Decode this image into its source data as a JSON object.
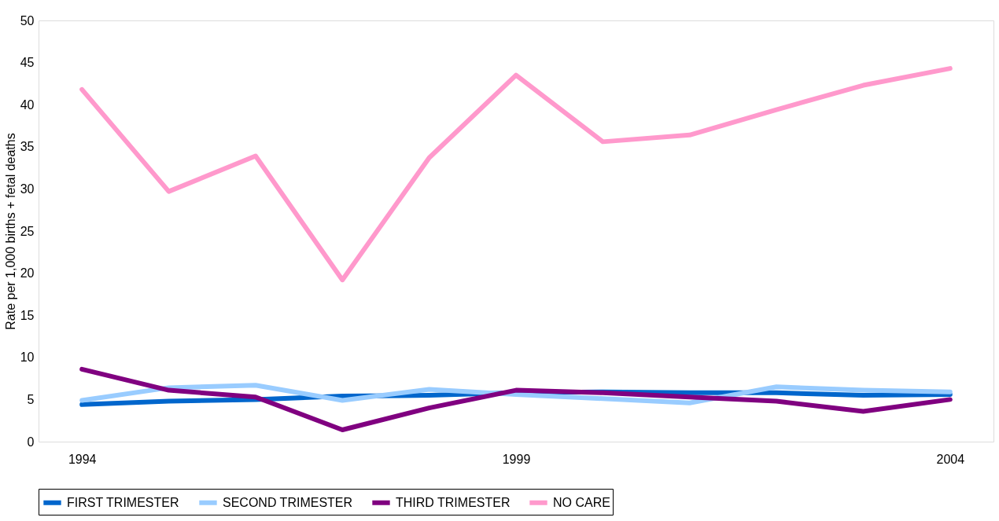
{
  "chart_data": {
    "type": "line",
    "ylabel": "Rate per 1,000 births + fetal deaths",
    "x": [
      1994,
      1995,
      1996,
      1997,
      1998,
      1999,
      2000,
      2001,
      2002,
      2003,
      2004
    ],
    "xlim": [
      1993.5,
      2004.5
    ],
    "xticks": [
      1994,
      1999,
      2004
    ],
    "ylim": [
      0,
      50
    ],
    "yticks": [
      0,
      5,
      10,
      15,
      20,
      25,
      30,
      35,
      40,
      45,
      50
    ],
    "grid": false,
    "legend": "bottom",
    "marker": "none",
    "line_style": "solid",
    "series": [
      {
        "name": "FIRST TRIMESTER",
        "color": "#0066cc",
        "values": [
          4.4,
          4.8,
          5.0,
          5.4,
          5.5,
          5.8,
          5.9,
          5.8,
          5.8,
          5.5,
          5.6
        ]
      },
      {
        "name": "SECOND TRIMESTER",
        "color": "#99ccff",
        "values": [
          4.9,
          6.4,
          6.7,
          4.9,
          6.2,
          5.6,
          5.1,
          4.6,
          6.5,
          6.1,
          5.9
        ]
      },
      {
        "name": "THIRD TRIMESTER",
        "color": "#800080",
        "values": [
          8.6,
          6.1,
          5.3,
          1.4,
          4.0,
          6.1,
          5.8,
          5.3,
          4.8,
          3.6,
          5.0
        ]
      },
      {
        "name": "NO CARE",
        "color": "#ff99cc",
        "values": [
          41.8,
          29.7,
          33.9,
          19.2,
          33.7,
          43.5,
          35.6,
          36.4,
          39.4,
          42.3,
          44.3
        ]
      }
    ]
  }
}
